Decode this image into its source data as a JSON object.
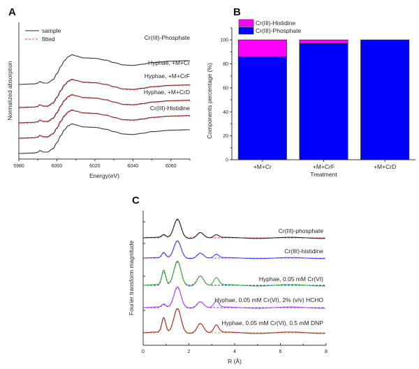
{
  "chart_data": [
    {
      "panel": "A",
      "type": "line",
      "xlabel": "Energy(eV)",
      "ylabel": "Normalized absorption",
      "xlim": [
        5980,
        6070
      ],
      "xticks": [
        5980,
        6000,
        6020,
        6040,
        6060
      ],
      "legend": {
        "position": "top-left",
        "entries": [
          {
            "label": "sample",
            "style": "solid",
            "color": "#222222"
          },
          {
            "label": "fitted",
            "style": "dashed",
            "color": "#ff3333"
          }
        ]
      },
      "series": [
        {
          "name": "Cr(III)-Phosphate",
          "fitted": false,
          "offset": 3.0
        },
        {
          "name": "Hyphae, +M+Cr",
          "fitted": true,
          "offset": 2.0
        },
        {
          "name": "Hyphae, +M+CrF",
          "fitted": true,
          "offset": 1.4
        },
        {
          "name": "Hyphae, +M+CrD",
          "fitted": true,
          "offset": 0.75
        },
        {
          "name": "Cr(III)-Histidine",
          "fitted": false,
          "offset": 0.0
        }
      ],
      "profile_x": [
        5980,
        5988,
        5990,
        5991,
        5993,
        5995,
        5998,
        6000,
        6002,
        6004,
        6006,
        6008,
        6010,
        6014,
        6020,
        6026,
        6030,
        6035,
        6040,
        6045,
        6050,
        6060,
        6070
      ],
      "profile_y": [
        0.0,
        0.02,
        0.05,
        0.12,
        0.06,
        0.06,
        0.2,
        0.45,
        0.75,
        1.0,
        1.17,
        1.25,
        1.2,
        1.12,
        1.1,
        1.02,
        0.92,
        0.82,
        0.8,
        0.85,
        0.92,
        0.98,
        1.0
      ]
    },
    {
      "panel": "B",
      "type": "bar",
      "stacked": true,
      "xlabel": "Treatment",
      "ylabel": "Components percentage (%)",
      "ylim": [
        0,
        110
      ],
      "yticks": [
        0,
        20,
        40,
        60,
        80,
        100
      ],
      "categories": [
        "+M+Cr",
        "+M+CrF",
        "+M+CrD"
      ],
      "legend_position": "top-left",
      "series": [
        {
          "name": "Cr(III)-Phosphate",
          "color": "#0000ff",
          "values": [
            86,
            97,
            100
          ]
        },
        {
          "name": "Cr(III)-Histidine",
          "color": "#ff00ff",
          "values": [
            14,
            3,
            0
          ]
        }
      ]
    },
    {
      "panel": "C",
      "type": "line",
      "xlabel": "R (Å)",
      "ylabel": "Fourier transform magnitude",
      "xlim": [
        0,
        8
      ],
      "xticks": [
        0,
        2,
        4,
        6,
        8
      ],
      "series": [
        {
          "name": "Cr(III)-phosphate",
          "color": "#222222",
          "fit_color": "#ff3333",
          "offset": 4
        },
        {
          "name": "Cr(III)-histidine",
          "color": "#3344ff",
          "fit_color": "#ff33ff",
          "offset": 3
        },
        {
          "name": "Hyphae, 0.05 mM Cr(VI)",
          "color": "#33aa33",
          "fit_color": "#2233aa",
          "offset": 2
        },
        {
          "name": "Hyphae, 0.05 mM Cr(VI), 2% (v/v) HCHO",
          "color": "#aa44ff",
          "fit_color": "#6633cc",
          "offset": 1
        },
        {
          "name": "Hyphae, 0.05 mM Cr(VI), 0.5 mM DNP",
          "color": "#aa2222",
          "fit_color": "#bbaa33",
          "offset": 0
        }
      ]
    }
  ],
  "panels": {
    "a": "A",
    "b": "B",
    "c": "C"
  }
}
